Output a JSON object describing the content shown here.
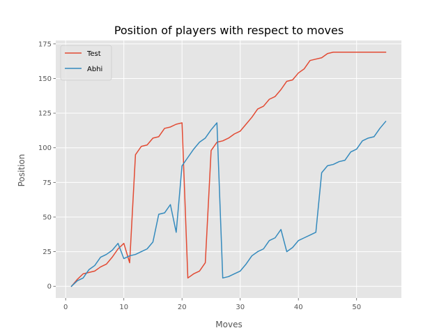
{
  "chart_data": {
    "type": "line",
    "title": "Position of players with respect to moves",
    "xlabel": "Moves",
    "ylabel": "Position",
    "xlim": [
      -1.7,
      57.7
    ],
    "ylim": [
      -8.45,
      177.45
    ],
    "xticks": [
      0,
      10,
      20,
      30,
      40,
      50
    ],
    "yticks": [
      0,
      25,
      50,
      75,
      100,
      125,
      150,
      175
    ],
    "grid": true,
    "legend": "top-left",
    "style": "ggplot",
    "series": [
      {
        "name": "Test",
        "color": "#E24A33",
        "x": [
          1,
          2,
          3,
          4,
          5,
          6,
          7,
          8,
          9,
          10,
          11,
          12,
          13,
          14,
          15,
          16,
          17,
          18,
          19,
          20,
          21,
          22,
          23,
          24,
          25,
          26,
          27,
          28,
          29,
          30,
          31,
          32,
          33,
          34,
          35,
          36,
          37,
          38,
          39,
          40,
          41,
          42,
          43,
          44,
          45,
          46,
          47,
          48,
          49,
          50,
          51,
          52,
          53,
          54,
          55
        ],
        "y": [
          0,
          5,
          9,
          10,
          11,
          14,
          16,
          21,
          27,
          31,
          17,
          95,
          101,
          102,
          107,
          108,
          114,
          115,
          117,
          118,
          6,
          9,
          11,
          17,
          98,
          104,
          105,
          107,
          110,
          112,
          117,
          122,
          128,
          130,
          135,
          137,
          142,
          148,
          149,
          154,
          157,
          163,
          164,
          165,
          168,
          169,
          169,
          169,
          169,
          169,
          169,
          169,
          169,
          169,
          169
        ]
      },
      {
        "name": "Abhi",
        "color": "#348ABD",
        "x": [
          1,
          2,
          3,
          4,
          5,
          6,
          7,
          8,
          9,
          10,
          11,
          12,
          13,
          14,
          15,
          16,
          17,
          18,
          19,
          20,
          21,
          22,
          23,
          24,
          25,
          26,
          27,
          28,
          29,
          30,
          31,
          32,
          33,
          34,
          35,
          36,
          37,
          38,
          39,
          40,
          41,
          42,
          43,
          44,
          45,
          46,
          47,
          48,
          49,
          50,
          51,
          52,
          53,
          54,
          55
        ],
        "y": [
          0,
          4,
          6,
          12,
          15,
          21,
          23,
          26,
          31,
          20,
          22,
          23,
          25,
          27,
          32,
          52,
          53,
          59,
          39,
          87,
          93,
          99,
          104,
          107,
          113,
          118,
          6,
          7,
          9,
          11,
          16,
          22,
          25,
          27,
          33,
          35,
          41,
          25,
          28,
          33,
          35,
          37,
          39,
          82,
          87,
          88,
          90,
          91,
          97,
          99,
          105,
          107,
          108,
          114,
          119
        ]
      }
    ]
  }
}
